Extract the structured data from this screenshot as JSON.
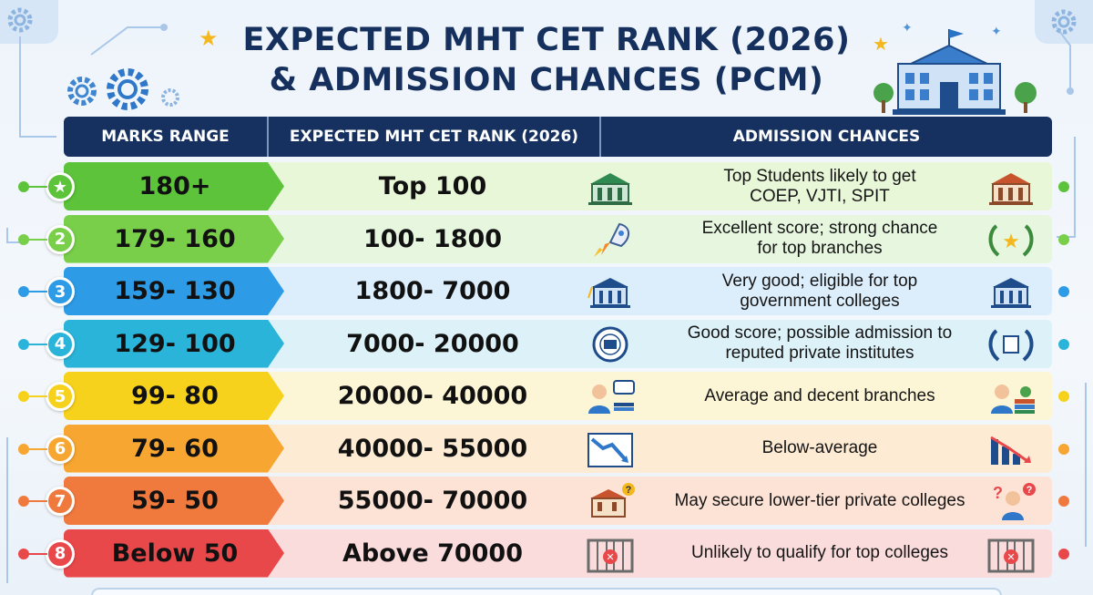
{
  "title": {
    "line1": "EXPECTED MHT CET RANK (2026)",
    "line2": "& ADMISSION CHANCES (PCM)"
  },
  "headers": {
    "marks": "MARKS RANGE",
    "rank": "EXPECTED MHT CET RANK (2026)",
    "chances": "ADMISSION CHANCES"
  },
  "rows": [
    {
      "badge": "★",
      "marks": "180+",
      "rank": "Top 100",
      "chance_line1": "Top Students likely to get",
      "chance_line2": "COEP, VJTI, SPIT",
      "color": "#5cc33a",
      "bg": "#e9f7d9",
      "icon_left": "college-building-icon",
      "icon_right": "university-icon"
    },
    {
      "badge": "2",
      "marks": "179- 160",
      "rank": "100- 1800",
      "chance_line1": "Excellent score; strong chance",
      "chance_line2": "for top branches",
      "color": "#79cf4a",
      "bg": "#e6f6df",
      "icon_left": "rocket-icon",
      "icon_right": "laurel-star-icon"
    },
    {
      "badge": "3",
      "marks": "159- 130",
      "rank": "1800- 7000",
      "chance_line1": "Very good; eligible for top",
      "chance_line2": "government colleges",
      "color": "#2e9be6",
      "bg": "#dcedfb",
      "icon_left": "graduation-building-icon",
      "icon_right": "government-building-icon"
    },
    {
      "badge": "4",
      "marks": "129- 100",
      "rank": "7000- 20000",
      "chance_line1": "Good score; possible admission to",
      "chance_line2": "reputed private institutes",
      "color": "#2bb4d9",
      "bg": "#dcf1f8",
      "icon_left": "institute-seal-icon",
      "icon_right": "laurel-emblem-icon"
    },
    {
      "badge": "5",
      "marks": "99- 80",
      "rank": "20000- 40000",
      "chance_line1": "Average and decent branches",
      "chance_line2": "",
      "color": "#f6d21d",
      "bg": "#fdf6d6",
      "icon_left": "student-chat-icon",
      "icon_right": "student-books-icon"
    },
    {
      "badge": "6",
      "marks": "79- 60",
      "rank": "40000- 55000",
      "chance_line1": "Below-average",
      "chance_line2": "",
      "color": "#f6a631",
      "bg": "#fdebd4",
      "icon_left": "trend-down-icon",
      "icon_right": "bar-decline-icon"
    },
    {
      "badge": "7",
      "marks": "59- 50",
      "rank": "55000- 70000",
      "chance_line1": "May secure lower-tier private colleges",
      "chance_line2": "",
      "color": "#f07a3e",
      "bg": "#fde3d6",
      "icon_left": "college-question-icon",
      "icon_right": "confused-student-icon"
    },
    {
      "badge": "8",
      "marks": "Below 50",
      "rank": "Above 70000",
      "chance_line1": "Unlikely to qualify for top colleges",
      "chance_line2": "",
      "color": "#e9484b",
      "bg": "#fbdcdc",
      "icon_left": "locked-gate-icon",
      "icon_right": "closed-gate-icon"
    }
  ]
}
